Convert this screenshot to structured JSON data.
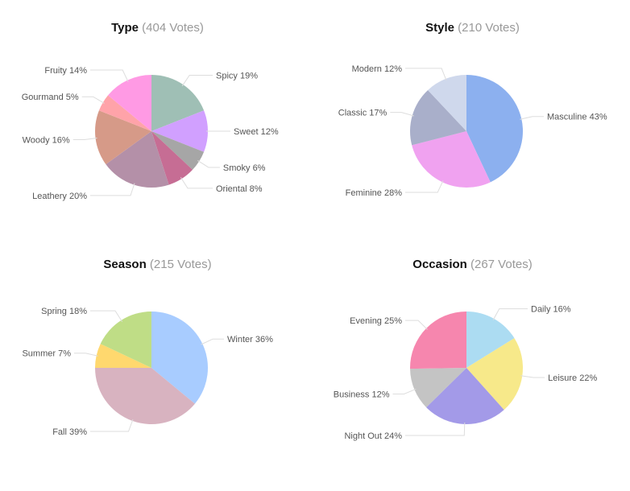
{
  "chart_data": [
    {
      "type": "pie",
      "title": "Type",
      "votes_text": "(404 Votes)",
      "slices": [
        {
          "label": "Spicy 19%",
          "value": 19,
          "color": "#9fbfb5"
        },
        {
          "label": "Sweet 12%",
          "value": 12,
          "color": "#d1a0ff"
        },
        {
          "label": "Smoky 6%",
          "value": 6,
          "color": "#a6a6a6"
        },
        {
          "label": "Oriental 8%",
          "value": 8,
          "color": "#c66d94"
        },
        {
          "label": "Leathery 20%",
          "value": 20,
          "color": "#b490a8"
        },
        {
          "label": "Woody 16%",
          "value": 16,
          "color": "#d69a88"
        },
        {
          "label": "Gourmand 5%",
          "value": 5,
          "color": "#ffa3a9"
        },
        {
          "label": "Fruity 14%",
          "value": 14,
          "color": "#ff9ae4"
        }
      ]
    },
    {
      "type": "pie",
      "title": "Style",
      "votes_text": "(210 Votes)",
      "slices": [
        {
          "label": "Masculine 43%",
          "value": 43,
          "color": "#8cb0ef"
        },
        {
          "label": "Feminine 28%",
          "value": 28,
          "color": "#f0a2f0"
        },
        {
          "label": "Classic 17%",
          "value": 17,
          "color": "#a9afca"
        },
        {
          "label": "Modern 12%",
          "value": 12,
          "color": "#cfd8ec"
        }
      ]
    },
    {
      "type": "pie",
      "title": "Season",
      "votes_text": "(215 Votes)",
      "slices": [
        {
          "label": "Winter 36%",
          "value": 36,
          "color": "#a8ccff"
        },
        {
          "label": "Fall 39%",
          "value": 39,
          "color": "#d8b3c0"
        },
        {
          "label": "Summer 7%",
          "value": 7,
          "color": "#ffd86e"
        },
        {
          "label": "Spring 18%",
          "value": 18,
          "color": "#bfdd86"
        }
      ]
    },
    {
      "type": "pie",
      "title": "Occasion",
      "votes_text": "(267 Votes)",
      "slices": [
        {
          "label": "Daily 16%",
          "value": 16,
          "color": "#acdcf2"
        },
        {
          "label": "Leisure 22%",
          "value": 22,
          "color": "#f7e98a"
        },
        {
          "label": "Night Out 24%",
          "value": 24,
          "color": "#a39ae8"
        },
        {
          "label": "Business 12%",
          "value": 12,
          "color": "#c4c4c4"
        },
        {
          "label": "Evening 25%",
          "value": 25,
          "color": "#f686ae"
        }
      ]
    }
  ]
}
